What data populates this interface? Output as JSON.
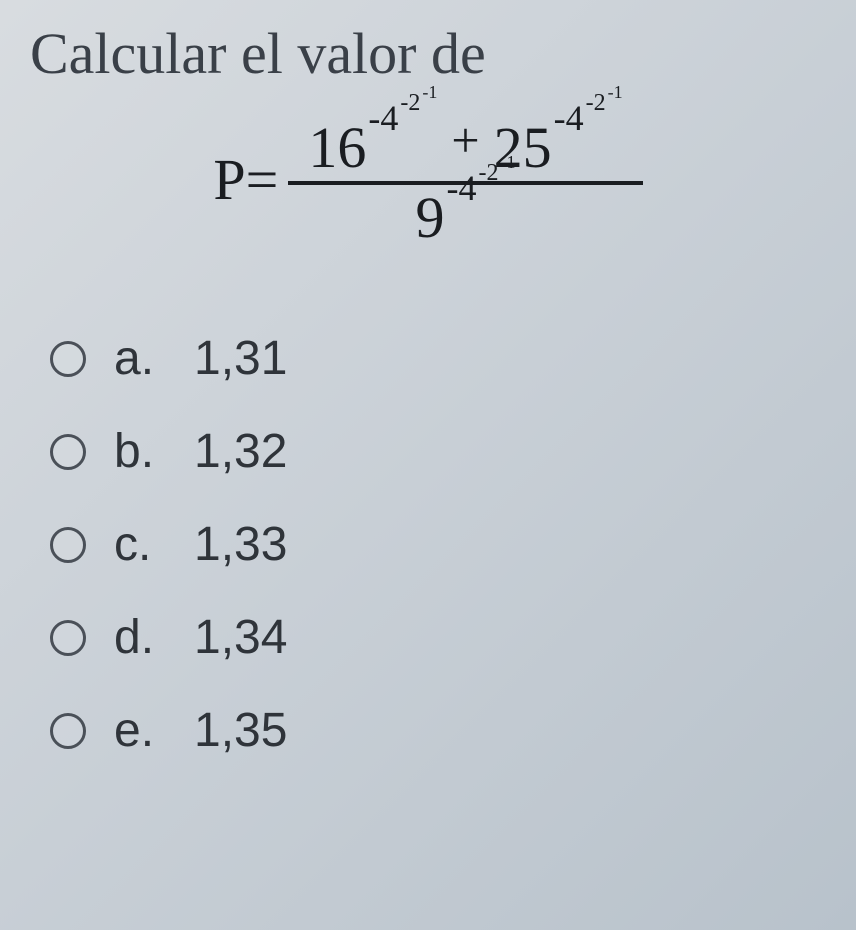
{
  "prompt": "Calcular el valor de",
  "formula": {
    "lhs": "P=",
    "numerator": {
      "term1": {
        "base": "16",
        "e1": "-4",
        "e2": "-2",
        "e3": "-1"
      },
      "plus": "+",
      "term2": {
        "base": "25",
        "e1": "-4",
        "e2": "-2",
        "e3": "-1"
      }
    },
    "denominator": {
      "term1": {
        "base": "9",
        "e1": "-4",
        "e2": "-2",
        "e3": "-1"
      }
    }
  },
  "options": [
    {
      "letter": "a.",
      "value": "1,31"
    },
    {
      "letter": "b.",
      "value": "1,32"
    },
    {
      "letter": "c.",
      "value": "1,33"
    },
    {
      "letter": "d.",
      "value": "1,34"
    },
    {
      "letter": "e.",
      "value": "1,35"
    }
  ],
  "colors": {
    "text": "#2a2e33",
    "formula": "#1a1d21",
    "bg_start": "#d8dce0",
    "bg_end": "#b8c2cb",
    "radio_border": "#4a5058"
  }
}
